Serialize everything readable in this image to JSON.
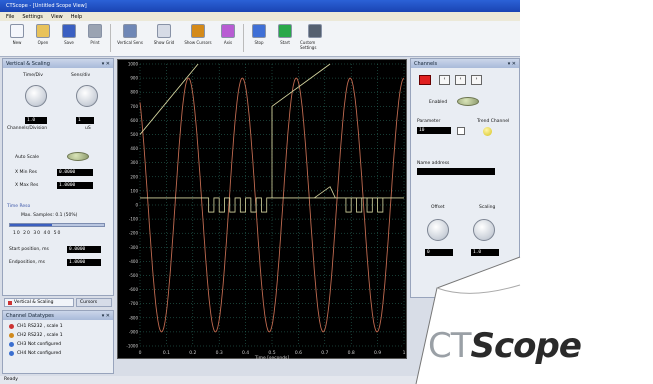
{
  "window": {
    "title": "CTScope - [Untitled Scope View]"
  },
  "menu": [
    "File",
    "Settings",
    "View",
    "Help"
  ],
  "toolbar": [
    {
      "label": "New",
      "icon": "document-icon",
      "color": "#f4f6fb"
    },
    {
      "label": "Open",
      "icon": "folder-icon",
      "color": "#e8c25a"
    },
    {
      "label": "Save",
      "icon": "save-icon",
      "color": "#3a5fc2"
    },
    {
      "label": "Print",
      "icon": "print-icon",
      "color": "#9aa3b2"
    },
    {
      "label": "Vertical Sens",
      "icon": "vertical-icon",
      "color": "#6f87b6"
    },
    {
      "label": "Show Grid",
      "icon": "grid-icon",
      "color": "#d6dbe6"
    },
    {
      "label": "Show Cursors",
      "icon": "cursor-icon",
      "color": "#d48a1a"
    },
    {
      "label": "Axis",
      "icon": "axis-icon",
      "color": "#b85cd3"
    },
    {
      "label": "Stop",
      "icon": "stop-icon",
      "color": "#3f6fd6"
    },
    {
      "label": "Start",
      "icon": "play-icon",
      "color": "#2aa84a"
    },
    {
      "label": "Custom Settings",
      "icon": "custom-icon",
      "color": "#556070"
    }
  ],
  "left_panel": {
    "title": "Vertical & Scaling",
    "knob1_label": "Time/Div",
    "knob2_label": "Sens/div",
    "value1": "1.0",
    "value2": "1",
    "caption1": "Channels/Division",
    "caption2": "uS",
    "autoscale_label": "Auto Scale",
    "xmin_label": "X Min Res",
    "xmax_label": "X Max Res",
    "xmin_value": "0.0000",
    "xmax_value": "1.0000",
    "time_group": "Time Reso",
    "rate_label": "Max. Samples: 0.1 (50%)",
    "slider_fraction": 0.45,
    "start_label": "Start position, ms",
    "end_label": "Endposition, ms",
    "start_value": "0.0000",
    "end_value": "1.0000"
  },
  "left_tabs": {
    "tab1": "Vertical & Scaling",
    "tab2": "Cursors"
  },
  "channels_panel": {
    "title": "Channel Datatypes",
    "items": [
      {
        "label": "CH1 RS232 , scale 1",
        "color": "#cc3333"
      },
      {
        "label": "CH2 RS232 , scale 1",
        "color": "#d08a1e"
      },
      {
        "label": "CH3 Not configured",
        "color": "#3a6fd0"
      },
      {
        "label": "CH4 Not configured",
        "color": "#3a6fd0"
      }
    ]
  },
  "right_panel": {
    "title": "Channels",
    "enabled_label": "Enabled",
    "param_label": "Parameter",
    "trend_label": "Trend Channel",
    "param_value": "10",
    "name_label": "Name address",
    "offset_label": "Offset",
    "scaling_label": "Scaling",
    "offset_value": "0",
    "scaling_value": "1.0",
    "channel_color": "#e02020"
  },
  "scope": {
    "y_ticks": [
      "1000",
      "900",
      "800",
      "700",
      "600",
      "500",
      "400",
      "300",
      "200",
      "100",
      "0",
      "-100",
      "-200",
      "-300",
      "-400",
      "-500",
      "-600",
      "-700",
      "-800",
      "-900",
      "-1000"
    ],
    "x_ticks": [
      "0",
      "0.1",
      "0.2",
      "0.3",
      "0.4",
      "0.5",
      "0.6",
      "0.7",
      "0.8",
      "0.9",
      "1"
    ],
    "x_axis_label": "Time [seconds]",
    "trace_color_a": "#d6d6a0",
    "trace_color_b": "#c06a50"
  },
  "status": "Ready",
  "logo": {
    "light": "CT",
    "bold": "Scope"
  }
}
